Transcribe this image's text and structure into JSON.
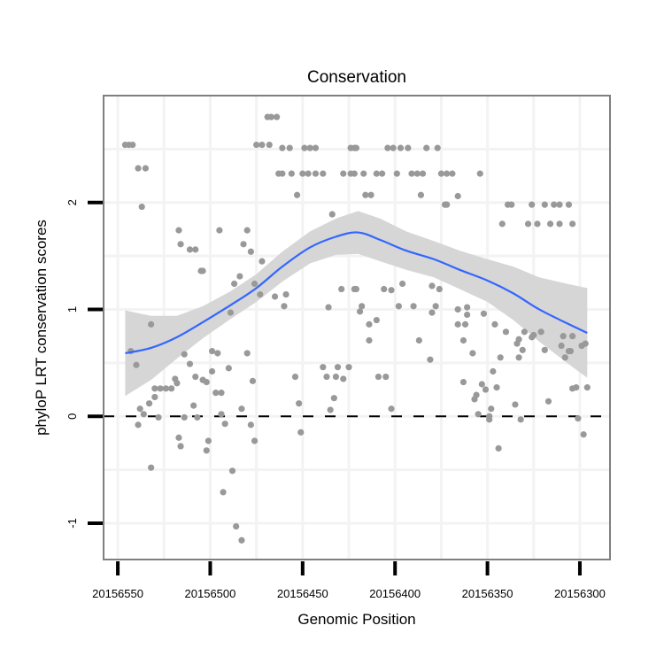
{
  "chart_data": {
    "type": "scatter",
    "title": "Conservation",
    "xlabel": "Genomic Position",
    "ylabel": "phyloP LRT conservation scores",
    "xlim": [
      20156557.7,
      20156283.7
    ],
    "x_reversed": true,
    "ylim": [
      -1.34,
      3.0
    ],
    "xticks": [
      20156550,
      20156500,
      20156450,
      20156400,
      20156350,
      20156300
    ],
    "xtick_labels": [
      "20156550",
      "20156500",
      "20156450",
      "20156400",
      "20156350",
      "20156300"
    ],
    "yticks": [
      -1,
      0,
      1,
      2
    ],
    "ytick_labels": [
      "-1",
      "0",
      "1",
      "2"
    ],
    "grid": true,
    "reference_line": {
      "y": 0,
      "style": "dashed"
    },
    "colors": {
      "points": "#999999",
      "smooth": "#3366FF",
      "band": "#d4d4d4",
      "panel_border": "#7f7f7f",
      "grid": "#f3f3f3"
    },
    "points": [
      [
        20156546,
        2.54
      ],
      [
        20156544,
        2.54
      ],
      [
        20156542,
        2.54
      ],
      [
        20156539,
        2.32
      ],
      [
        20156535,
        2.32
      ],
      [
        20156537,
        1.96
      ],
      [
        20156532,
        0.86
      ],
      [
        20156517,
        1.74
      ],
      [
        20156516,
        1.61
      ],
      [
        20156511,
        1.56
      ],
      [
        20156508,
        1.56
      ],
      [
        20156505,
        1.36
      ],
      [
        20156504,
        1.36
      ],
      [
        20156495,
        1.74
      ],
      [
        20156484,
        1.31
      ],
      [
        20156487,
        1.24
      ],
      [
        20156480,
        1.74
      ],
      [
        20156482,
        1.61
      ],
      [
        20156478,
        1.54
      ],
      [
        20156476,
        1.24
      ],
      [
        20156472,
        1.45
      ],
      [
        20156473,
        1.14
      ],
      [
        20156465,
        1.12
      ],
      [
        20156459,
        1.14
      ],
      [
        20156460,
        1.03
      ],
      [
        20156436,
        1.02
      ],
      [
        20156429,
        1.19
      ],
      [
        20156422,
        1.19
      ],
      [
        20156434,
        1.89
      ],
      [
        20156453,
        2.07
      ],
      [
        20156489,
        0.97
      ],
      [
        20156469,
        2.8
      ],
      [
        20156467,
        2.8
      ],
      [
        20156464,
        2.8
      ],
      [
        20156475,
        2.54
      ],
      [
        20156472,
        2.54
      ],
      [
        20156468,
        2.54
      ],
      [
        20156461,
        2.51
      ],
      [
        20156457,
        2.51
      ],
      [
        20156449,
        2.51
      ],
      [
        20156446,
        2.51
      ],
      [
        20156443,
        2.51
      ],
      [
        20156424,
        2.51
      ],
      [
        20156422,
        2.51
      ],
      [
        20156463,
        2.27
      ],
      [
        20156461,
        2.27
      ],
      [
        20156456,
        2.27
      ],
      [
        20156450,
        2.27
      ],
      [
        20156447,
        2.27
      ],
      [
        20156443,
        2.27
      ],
      [
        20156439,
        2.27
      ],
      [
        20156428,
        2.27
      ],
      [
        20156424,
        2.27
      ],
      [
        20156421,
        2.51
      ],
      [
        20156404,
        2.51
      ],
      [
        20156401,
        2.51
      ],
      [
        20156397,
        2.51
      ],
      [
        20156393,
        2.51
      ],
      [
        20156383,
        2.51
      ],
      [
        20156377,
        2.51
      ],
      [
        20156422,
        2.27
      ],
      [
        20156417,
        2.27
      ],
      [
        20156410,
        2.27
      ],
      [
        20156407,
        2.27
      ],
      [
        20156399,
        2.27
      ],
      [
        20156391,
        2.27
      ],
      [
        20156388,
        2.27
      ],
      [
        20156385,
        2.27
      ],
      [
        20156375,
        2.27
      ],
      [
        20156372,
        2.27
      ],
      [
        20156369,
        2.27
      ],
      [
        20156354,
        2.27
      ],
      [
        20156416,
        2.07
      ],
      [
        20156413,
        2.07
      ],
      [
        20156386,
        2.07
      ],
      [
        20156366,
        2.06
      ],
      [
        20156373,
        1.98
      ],
      [
        20156372,
        1.98
      ],
      [
        20156339,
        1.98
      ],
      [
        20156337,
        1.98
      ],
      [
        20156326,
        1.98
      ],
      [
        20156319,
        1.98
      ],
      [
        20156314,
        1.98
      ],
      [
        20156311,
        1.98
      ],
      [
        20156306,
        1.98
      ],
      [
        20156342,
        1.8
      ],
      [
        20156328,
        1.8
      ],
      [
        20156323,
        1.8
      ],
      [
        20156316,
        1.8
      ],
      [
        20156311,
        1.8
      ],
      [
        20156304,
        1.8
      ],
      [
        20156421,
        1.19
      ],
      [
        20156406,
        1.19
      ],
      [
        20156402,
        1.18
      ],
      [
        20156396,
        1.24
      ],
      [
        20156380,
        1.22
      ],
      [
        20156376,
        1.19
      ],
      [
        20156418,
        1.03
      ],
      [
        20156419,
        0.98
      ],
      [
        20156398,
        1.03
      ],
      [
        20156390,
        1.03
      ],
      [
        20156378,
        1.03
      ],
      [
        20156380,
        0.97
      ],
      [
        20156366,
        1.0
      ],
      [
        20156361,
        1.02
      ],
      [
        20156361,
        0.95
      ],
      [
        20156352,
        0.96
      ],
      [
        20156414,
        0.86
      ],
      [
        20156410,
        0.9
      ],
      [
        20156366,
        0.86
      ],
      [
        20156362,
        0.86
      ],
      [
        20156346,
        0.86
      ],
      [
        20156543,
        0.61
      ],
      [
        20156540,
        0.48
      ],
      [
        20156514,
        0.58
      ],
      [
        20156511,
        0.49
      ],
      [
        20156499,
        0.61
      ],
      [
        20156496,
        0.59
      ],
      [
        20156480,
        0.59
      ],
      [
        20156490,
        0.45
      ],
      [
        20156499,
        0.42
      ],
      [
        20156508,
        0.37
      ],
      [
        20156504,
        0.34
      ],
      [
        20156502,
        0.32
      ],
      [
        20156519,
        0.35
      ],
      [
        20156518,
        0.31
      ],
      [
        20156530,
        0.26
      ],
      [
        20156527,
        0.26
      ],
      [
        20156524,
        0.26
      ],
      [
        20156521,
        0.26
      ],
      [
        20156530,
        0.18
      ],
      [
        20156533,
        0.12
      ],
      [
        20156538,
        0.07
      ],
      [
        20156536,
        0.02
      ],
      [
        20156539,
        -0.08
      ],
      [
        20156528,
        -0.01
      ],
      [
        20156514,
        -0.01
      ],
      [
        20156509,
        0.1
      ],
      [
        20156507,
        -0.01
      ],
      [
        20156497,
        0.22
      ],
      [
        20156494,
        0.22
      ],
      [
        20156494,
        0.02
      ],
      [
        20156492,
        -0.07
      ],
      [
        20156483,
        0.07
      ],
      [
        20156478,
        -0.08
      ],
      [
        20156477,
        0.33
      ],
      [
        20156476,
        -0.23
      ],
      [
        20156517,
        -0.2
      ],
      [
        20156516,
        -0.28
      ],
      [
        20156501,
        -0.23
      ],
      [
        20156502,
        -0.32
      ],
      [
        20156532,
        -0.48
      ],
      [
        20156488,
        -0.51
      ],
      [
        20156493,
        -0.71
      ],
      [
        20156486,
        -1.03
      ],
      [
        20156483,
        -1.16
      ],
      [
        20156454,
        0.37
      ],
      [
        20156452,
        0.12
      ],
      [
        20156451,
        -0.15
      ],
      [
        20156439,
        0.46
      ],
      [
        20156437,
        0.37
      ],
      [
        20156432,
        0.37
      ],
      [
        20156431,
        0.46
      ],
      [
        20156428,
        0.35
      ],
      [
        20156425,
        0.46
      ],
      [
        20156433,
        0.17
      ],
      [
        20156435,
        0.06
      ],
      [
        20156414,
        0.71
      ],
      [
        20156387,
        0.71
      ],
      [
        20156381,
        0.53
      ],
      [
        20156363,
        0.71
      ],
      [
        20156358,
        0.59
      ],
      [
        20156409,
        0.37
      ],
      [
        20156405,
        0.37
      ],
      [
        20156402,
        0.07
      ],
      [
        20156363,
        0.32
      ],
      [
        20156353,
        0.3
      ],
      [
        20156351,
        0.25
      ],
      [
        20156356,
        0.2
      ],
      [
        20156357,
        0.16
      ],
      [
        20156355,
        0.02
      ],
      [
        20156349,
        0.0
      ],
      [
        20156349,
        -0.03
      ],
      [
        20156348,
        0.07
      ],
      [
        20156345,
        0.27
      ],
      [
        20156347,
        0.42
      ],
      [
        20156343,
        0.55
      ],
      [
        20156344,
        -0.3
      ],
      [
        20156335,
        0.11
      ],
      [
        20156332,
        -0.03
      ],
      [
        20156340,
        0.79
      ],
      [
        20156330,
        0.79
      ],
      [
        20156333,
        0.72
      ],
      [
        20156334,
        0.68
      ],
      [
        20156326,
        0.74
      ],
      [
        20156325,
        0.76
      ],
      [
        20156321,
        0.79
      ],
      [
        20156331,
        0.62
      ],
      [
        20156333,
        0.55
      ],
      [
        20156319,
        0.62
      ],
      [
        20156309,
        0.75
      ],
      [
        20156304,
        0.75
      ],
      [
        20156310,
        0.66
      ],
      [
        20156306,
        0.61
      ],
      [
        20156305,
        0.61
      ],
      [
        20156308,
        0.55
      ],
      [
        20156299,
        0.66
      ],
      [
        20156297,
        0.68
      ],
      [
        20156317,
        0.14
      ],
      [
        20156304,
        0.26
      ],
      [
        20156302,
        0.27
      ],
      [
        20156296,
        0.27
      ],
      [
        20156301,
        -0.02
      ],
      [
        20156298,
        -0.17
      ]
    ],
    "smooth": {
      "method": "loess",
      "x": [
        20156546,
        20156532,
        20156518,
        20156504,
        20156489,
        20156475,
        20156461,
        20156446,
        20156432,
        20156420,
        20156408,
        20156394,
        20156379,
        20156365,
        20156350,
        20156336,
        20156322,
        20156307,
        20156296
      ],
      "y": [
        0.59,
        0.64,
        0.74,
        0.88,
        1.04,
        1.2,
        1.4,
        1.58,
        1.68,
        1.72,
        1.65,
        1.55,
        1.47,
        1.37,
        1.27,
        1.15,
        1.0,
        0.87,
        0.78
      ],
      "ymin": [
        0.19,
        0.34,
        0.54,
        0.73,
        0.91,
        1.07,
        1.26,
        1.43,
        1.51,
        1.52,
        1.45,
        1.37,
        1.3,
        1.19,
        1.07,
        0.9,
        0.7,
        0.5,
        0.36
      ],
      "ymax": [
        0.99,
        0.94,
        0.94,
        1.03,
        1.17,
        1.33,
        1.54,
        1.73,
        1.85,
        1.92,
        1.85,
        1.73,
        1.64,
        1.55,
        1.47,
        1.4,
        1.3,
        1.24,
        1.2
      ]
    }
  }
}
